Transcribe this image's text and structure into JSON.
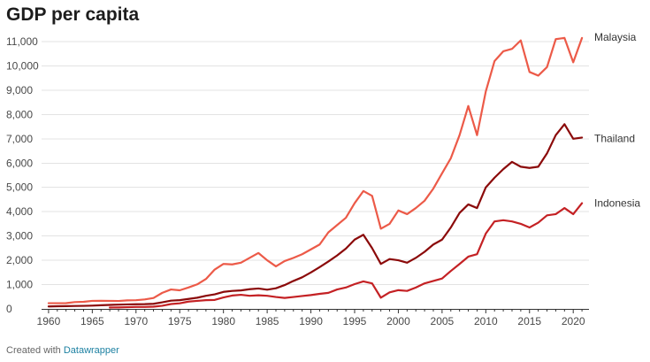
{
  "chart_data": {
    "type": "line",
    "title": "GDP per capita",
    "xlabel": "",
    "ylabel": "",
    "xlim": [
      1959.2,
      2021.8
    ],
    "ylim": [
      0,
      11000
    ],
    "x_ticks": [
      1960,
      1965,
      1970,
      1975,
      1980,
      1985,
      1990,
      1995,
      2000,
      2005,
      2010,
      2015,
      2020
    ],
    "x_tick_labels": [
      "1960",
      "1965",
      "1970",
      "1975",
      "1980",
      "1985",
      "1990",
      "1995",
      "2000",
      "2005",
      "2010",
      "2015",
      "2020"
    ],
    "y_ticks": [
      0,
      1000,
      2000,
      3000,
      4000,
      5000,
      6000,
      7000,
      8000,
      9000,
      10000,
      11000
    ],
    "y_tick_labels": [
      "0",
      "1,000",
      "2,000",
      "3,000",
      "4,000",
      "5,000",
      "6,000",
      "7,000",
      "8,000",
      "9,000",
      "10,000",
      "11,000"
    ],
    "grid": "horizontal",
    "legend": "labels at line ends",
    "x": [
      1960,
      1961,
      1962,
      1963,
      1964,
      1965,
      1966,
      1967,
      1968,
      1969,
      1970,
      1971,
      1972,
      1973,
      1974,
      1975,
      1976,
      1977,
      1978,
      1979,
      1980,
      1981,
      1982,
      1983,
      1984,
      1985,
      1986,
      1987,
      1988,
      1989,
      1990,
      1991,
      1992,
      1993,
      1994,
      1995,
      1996,
      1997,
      1998,
      1999,
      2000,
      2001,
      2002,
      2003,
      2004,
      2005,
      2006,
      2007,
      2008,
      2009,
      2010,
      2011,
      2012,
      2013,
      2014,
      2015,
      2016,
      2017,
      2018,
      2019,
      2020,
      2021
    ],
    "series": [
      {
        "name": "Malaysia",
        "color": "#ec5a48",
        "values": [
          235,
          234,
          236,
          280,
          292,
          330,
          335,
          330,
          325,
          350,
          357,
          390,
          450,
          660,
          800,
          765,
          880,
          1010,
          1230,
          1620,
          1850,
          1830,
          1900,
          2100,
          2300,
          2000,
          1750,
          1970,
          2100,
          2250,
          2450,
          2650,
          3150,
          3450,
          3750,
          4350,
          4850,
          4650,
          3300,
          3500,
          4050,
          3900,
          4150,
          4450,
          4950,
          5580,
          6200,
          7150,
          8350,
          7150,
          8950,
          10200,
          10600,
          10700,
          11050,
          9750,
          9600,
          9950,
          11100,
          11150,
          10150,
          11150
        ]
      },
      {
        "name": "Thailand",
        "color": "#8b0a0a",
        "values": [
          100,
          110,
          115,
          120,
          125,
          135,
          150,
          165,
          175,
          185,
          190,
          195,
          210,
          270,
          340,
          360,
          410,
          460,
          540,
          600,
          700,
          740,
          760,
          810,
          840,
          790,
          850,
          980,
          1150,
          1300,
          1500,
          1720,
          1950,
          2200,
          2480,
          2850,
          3050,
          2500,
          1850,
          2050,
          2000,
          1900,
          2100,
          2350,
          2650,
          2850,
          3350,
          3950,
          4300,
          4150,
          5000,
          5400,
          5750,
          6050,
          5850,
          5800,
          5850,
          6400,
          7150,
          7600,
          7000,
          7050
        ]
      },
      {
        "name": "Indonesia",
        "color": "#c42124",
        "values": [
          null,
          null,
          null,
          null,
          null,
          null,
          null,
          55,
          60,
          70,
          80,
          80,
          90,
          130,
          200,
          230,
          300,
          330,
          360,
          370,
          470,
          550,
          580,
          540,
          560,
          540,
          490,
          450,
          490,
          530,
          570,
          620,
          660,
          800,
          880,
          1020,
          1130,
          1050,
          460,
          680,
          770,
          740,
          880,
          1050,
          1150,
          1250,
          1560,
          1850,
          2150,
          2250,
          3100,
          3600,
          3650,
          3600,
          3500,
          3350,
          3550,
          3850,
          3900,
          4150,
          3900,
          4350
        ]
      }
    ]
  },
  "footer": {
    "prefix": "Created with",
    "link": "Datawrapper"
  }
}
